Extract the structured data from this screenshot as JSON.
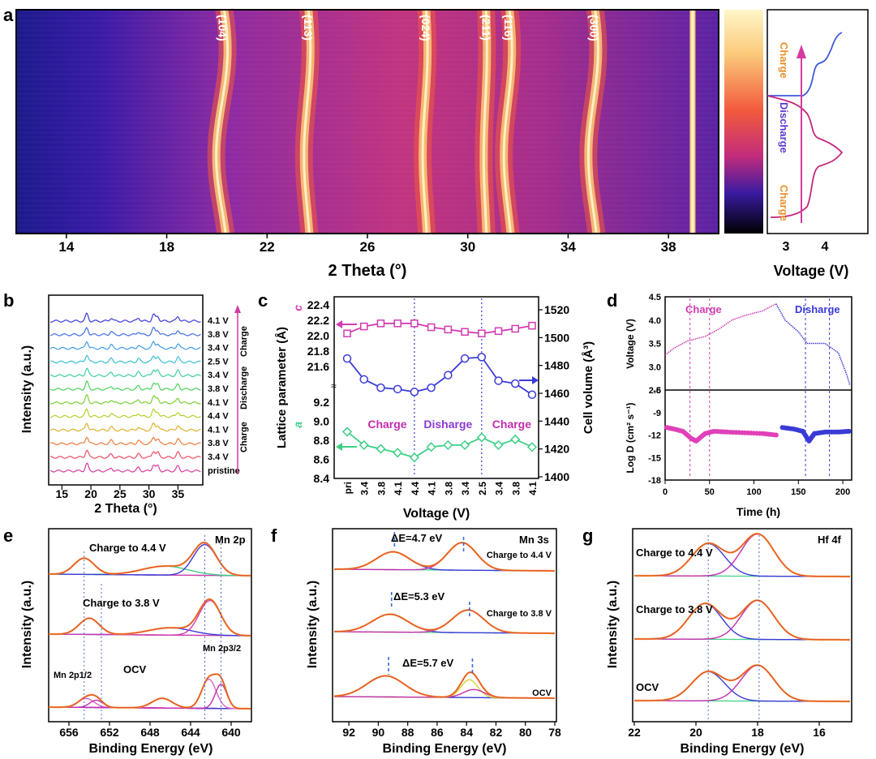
{
  "panels": {
    "a": {
      "label": "a",
      "xlabel": "2 Theta (°)",
      "xticks": [
        "14",
        "18",
        "22",
        "26",
        "30",
        "34",
        "38"
      ],
      "xlim": [
        12,
        40
      ],
      "peaks": [
        {
          "label": "(104)",
          "x": 20.2
        },
        {
          "label": "(113)",
          "x": 23.6
        },
        {
          "label": "(024)",
          "x": 28.3
        },
        {
          "label": "(211)",
          "x": 30.7
        },
        {
          "label": "(116)",
          "x": 31.6
        },
        {
          "label": "(300)",
          "x": 35.0
        }
      ],
      "voltage_panel": {
        "xlabel": "Voltage (V)",
        "xticks": [
          "3",
          "4"
        ],
        "charge_top": "Charge",
        "discharge": "Discharge",
        "charge_bottom": "Charge"
      }
    },
    "b": {
      "label": "b",
      "xlabel": "2 Theta (°)",
      "ylabel": "Intensity (a.u.)",
      "xticks": [
        "15",
        "20",
        "25",
        "30",
        "35"
      ],
      "xlim": [
        13,
        39
      ],
      "traces": [
        "4.1 V",
        "3.8 V",
        "3.4 V",
        "2.5 V",
        "3.4 V",
        "3.8 V",
        "4.1 V",
        "4.4 V",
        "4.1 V",
        "3.8 V",
        "3.4 V",
        "pristine"
      ],
      "trace_colors": [
        "#3a3ad6",
        "#3f6fe0",
        "#3f9be6",
        "#38c0d8",
        "#3ccf9a",
        "#49d35a",
        "#7ad12f",
        "#b6cf2a",
        "#e0b12c",
        "#ee7a3a",
        "#ea4d63",
        "#d83aa0"
      ],
      "stage_labels": {
        "charge_top": "Charge",
        "discharge": "Discharge",
        "charge_bottom": "Charge"
      }
    },
    "c": {
      "label": "c",
      "xlabel": "Voltage (V)",
      "ylabel_left": "Lattice parameter (Å)",
      "ylabel_right": "Cell volume (Å³)",
      "categories": [
        "pri",
        "3.4",
        "3.8",
        "4.1",
        "4.4",
        "4.1",
        "3.8",
        "3.4",
        "2.5",
        "3.4",
        "3.8",
        "4.1"
      ],
      "c_param": [
        22.03,
        22.12,
        22.16,
        22.16,
        22.16,
        22.11,
        22.08,
        22.05,
        22.03,
        22.06,
        22.09,
        22.13
      ],
      "cell_volume": [
        1485,
        1470,
        1464,
        1463,
        1461,
        1464,
        1473,
        1485,
        1486,
        1469,
        1467,
        1459
      ],
      "a_param": [
        8.89,
        8.75,
        8.71,
        8.67,
        8.62,
        8.73,
        8.75,
        8.75,
        8.83,
        8.75,
        8.81,
        8.73
      ],
      "left_ticks_top": [
        "22.4",
        "22.2",
        "22.0",
        "21.8",
        "21.6"
      ],
      "left_ticks_bottom": [
        "9.2",
        "9.0",
        "8.8",
        "8.6",
        "8.4"
      ],
      "right_ticks": [
        "1520",
        "1500",
        "1480",
        "1460",
        "1440",
        "1420",
        "1400"
      ],
      "series_labels": {
        "c": "c",
        "a": "a"
      },
      "region_labels": [
        "Charge",
        "Disharge",
        "Charge"
      ],
      "colors": {
        "c": "#d13bb0",
        "v": "#3a3ad6",
        "a": "#3ccf85"
      }
    },
    "d": {
      "label": "d",
      "xlabel": "Time (h)",
      "ylabel_top": "Voltage (V)",
      "ylabel_bottom": "Log D (cm² s⁻¹)",
      "xticks": [
        "0",
        "50",
        "100",
        "150",
        "200"
      ],
      "top_yticks": [
        "4.5",
        "4.0",
        "3.5",
        "3.0",
        "2.5"
      ],
      "bottom_yticks": [
        "-6",
        "-9",
        "-12",
        "-15",
        "-18"
      ],
      "charge_label": "Charge",
      "discharge_label": "Disharge",
      "voltage_curve": [
        [
          0,
          3.25
        ],
        [
          10,
          3.4
        ],
        [
          25,
          3.55
        ],
        [
          45,
          3.65
        ],
        [
          60,
          3.8
        ],
        [
          75,
          4.0
        ],
        [
          90,
          4.1
        ],
        [
          110,
          4.2
        ],
        [
          125,
          4.35
        ],
        [
          135,
          4.0
        ],
        [
          150,
          3.75
        ],
        [
          160,
          3.5
        ],
        [
          180,
          3.5
        ],
        [
          195,
          3.3
        ],
        [
          205,
          2.8
        ],
        [
          208,
          2.6
        ]
      ],
      "logd_charge": [
        [
          2,
          -11.0
        ],
        [
          10,
          -11.2
        ],
        [
          20,
          -11.5
        ],
        [
          30,
          -12.5
        ],
        [
          35,
          -12.8
        ],
        [
          45,
          -11.8
        ],
        [
          55,
          -11.5
        ],
        [
          70,
          -11.6
        ],
        [
          90,
          -11.7
        ],
        [
          110,
          -11.8
        ],
        [
          125,
          -12.0
        ]
      ],
      "logd_discharge": [
        [
          132,
          -11.0
        ],
        [
          145,
          -11.2
        ],
        [
          155,
          -11.5
        ],
        [
          162,
          -12.8
        ],
        [
          168,
          -11.8
        ],
        [
          180,
          -11.6
        ],
        [
          195,
          -11.6
        ],
        [
          207,
          -11.5
        ]
      ]
    },
    "e": {
      "label": "e",
      "title": "Mn 2p",
      "xlabel": "Binding Energy (eV)",
      "ylabel": "Intensity (a.u.)",
      "xticks": [
        "656",
        "652",
        "648",
        "644",
        "640"
      ],
      "spectra_labels": [
        "Charge to 4.4 V",
        "Charge to 3.8 V",
        "OCV"
      ],
      "peak_label_left": "Mn 2p1/2",
      "peak_label_right": "Mn 2p3/2"
    },
    "f": {
      "label": "f",
      "title": "Mn 3s",
      "xlabel": "Binding Energy (eV)",
      "ylabel": "Intensity (a.u.)",
      "xticks": [
        "92",
        "90",
        "88",
        "86",
        "84",
        "82",
        "80",
        "78"
      ],
      "spectra_labels": [
        "Charge to 4.4 V",
        "Charge to 3.8 V",
        "OCV"
      ],
      "delta_labels": [
        "ΔE=4.7 eV",
        "ΔE=5.3 eV",
        "ΔE=5.7 eV"
      ]
    },
    "g": {
      "label": "g",
      "title": "Hf 4f",
      "xlabel": "Binding Energy (eV)",
      "ylabel": "Intensity (a.u.)",
      "xticks": [
        "22",
        "20",
        "18",
        "16"
      ],
      "spectra_labels": [
        "Charge to 4.4 V",
        "Charge to 3.8 V",
        "OCV"
      ]
    }
  }
}
